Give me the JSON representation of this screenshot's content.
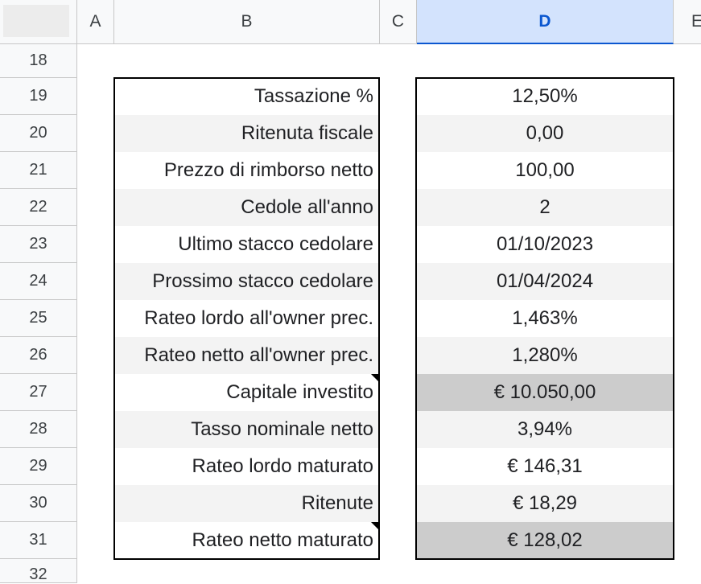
{
  "columns": [
    {
      "label": "A",
      "selected": false
    },
    {
      "label": "B",
      "selected": false
    },
    {
      "label": "C",
      "selected": false
    },
    {
      "label": "D",
      "selected": true
    },
    {
      "label": "E",
      "selected": false
    }
  ],
  "row_numbers": [
    "18",
    "19",
    "20",
    "21",
    "22",
    "23",
    "24",
    "25",
    "26",
    "27",
    "28",
    "29",
    "30",
    "31",
    "32"
  ],
  "rows": [
    {
      "label": "Tassazione %",
      "value": "12,50%"
    },
    {
      "label": "Ritenuta fiscale",
      "value": "0,00"
    },
    {
      "label": "Prezzo di rimborso netto",
      "value": "100,00"
    },
    {
      "label": "Cedole all'anno",
      "value": "2"
    },
    {
      "label": "Ultimo stacco cedolare",
      "value": "01/10/2023"
    },
    {
      "label": "Prossimo stacco cedolare",
      "value": "01/04/2024"
    },
    {
      "label": "Rateo lordo all'owner prec.",
      "value": "1,463%"
    },
    {
      "label": "Rateo netto all'owner prec.",
      "value": "1,280%"
    },
    {
      "label": "Capitale investito",
      "value": "€ 10.050,00"
    },
    {
      "label": "Tasso nominale netto",
      "value": "3,94%"
    },
    {
      "label": "Rateo lordo maturato",
      "value": "€ 146,31"
    },
    {
      "label": "Ritenute",
      "value": "€ 18,29"
    },
    {
      "label": "Rateo netto maturato",
      "value": "€ 128,02"
    }
  ],
  "colors": {
    "header_bg": "#f8f9fa",
    "selected_header_bg": "#d3e3fd",
    "selected_header_text": "#0b57d0",
    "banded_row": "#f3f3f3",
    "highlight_cell": "#cccccc"
  }
}
